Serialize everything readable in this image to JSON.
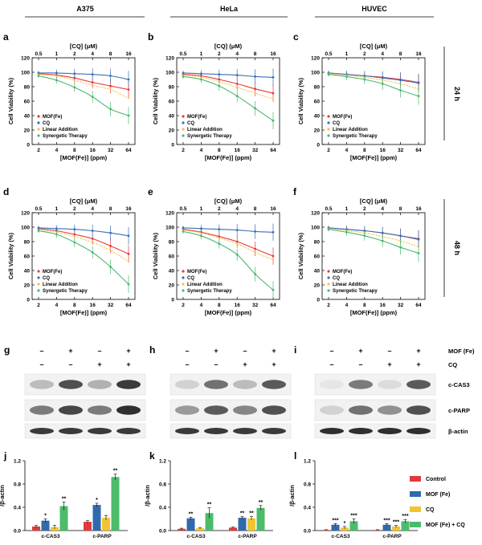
{
  "columns": [
    "A375",
    "HeLa",
    "HUVEC"
  ],
  "time_labels": [
    "24 h",
    "48 h"
  ],
  "colors": {
    "mof": "#e8383d",
    "cq": "#3b6fb6",
    "linear": "#f5c242",
    "synergy": "#4cb870",
    "control_bar": "#e03a3e",
    "mof_bar": "#2f6aac",
    "cq_bar": "#f3c431",
    "combo_bar": "#4cbb6c"
  },
  "legend_labels": [
    "MOF(Fe)",
    "CQ",
    "Linear Addition",
    "Synergetic Therapy"
  ],
  "blot": {
    "row_labels": [
      "MOF (Fe)",
      "CQ"
    ],
    "protein_labels": [
      "c-CAS3",
      "c-PARP",
      "β-actin"
    ],
    "mof_signs": [
      "–",
      "+",
      "–",
      "+"
    ],
    "cq_signs": [
      "–",
      "–",
      "+",
      "+"
    ]
  },
  "chart_data": [
    {
      "panel": "a",
      "type": "line",
      "cell": "A375",
      "time": "24 h",
      "xlabel": "[MOF(Fe)] (ppm)",
      "x2label": "[CQ] (μM)",
      "ylabel": "Cell Viability (%)",
      "x": [
        2,
        4,
        8,
        16,
        32,
        64
      ],
      "x_ticks": [
        "2",
        "4",
        "8",
        "16",
        "32",
        "64"
      ],
      "x2_ticks": [
        "0.5",
        "1",
        "2",
        "4",
        "8",
        "16"
      ],
      "ylim": [
        0,
        120
      ],
      "y_ticks": [
        "0",
        "20",
        "40",
        "60",
        "80",
        "100",
        "120"
      ],
      "series": [
        {
          "name": "MOF(Fe)",
          "values": [
            98,
            96,
            92,
            86,
            81,
            76
          ]
        },
        {
          "name": "CQ",
          "values": [
            99,
            99,
            98,
            97,
            95,
            90
          ]
        },
        {
          "name": "Linear Addition",
          "values": [
            97,
            95,
            89,
            82,
            76,
            64
          ]
        },
        {
          "name": "Synergetic Therapy",
          "values": [
            95,
            89,
            79,
            66,
            49,
            40
          ]
        }
      ]
    },
    {
      "panel": "b",
      "type": "line",
      "cell": "HeLa",
      "time": "24 h",
      "xlabel": "[MOF(Fe)] (ppm)",
      "x2label": "[CQ] (μM)",
      "ylabel": "Cell Viability (%)",
      "x": [
        2,
        4,
        8,
        16,
        32,
        64
      ],
      "x_ticks": [
        "2",
        "4",
        "8",
        "16",
        "32",
        "64"
      ],
      "x2_ticks": [
        "0.5",
        "1",
        "2",
        "4",
        "8",
        "16"
      ],
      "ylim": [
        0,
        120
      ],
      "y_ticks": [
        "0",
        "20",
        "40",
        "60",
        "80",
        "100",
        "120"
      ],
      "series": [
        {
          "name": "MOF(Fe)",
          "values": [
            97,
            95,
            90,
            84,
            77,
            71
          ]
        },
        {
          "name": "CQ",
          "values": [
            99,
            98,
            97,
            96,
            94,
            93
          ]
        },
        {
          "name": "Linear Addition",
          "values": [
            96,
            93,
            87,
            79,
            71,
            63
          ]
        },
        {
          "name": "Synergetic Therapy",
          "values": [
            94,
            90,
            81,
            67,
            50,
            33
          ]
        }
      ]
    },
    {
      "panel": "c",
      "type": "line",
      "cell": "HUVEC",
      "time": "24 h",
      "xlabel": "[MOF(Fe)] (ppm)",
      "x2label": "[CQ] (μM)",
      "ylabel": "Cell Viability (%)",
      "x": [
        2,
        4,
        8,
        16,
        32,
        64
      ],
      "x_ticks": [
        "2",
        "4",
        "8",
        "16",
        "32",
        "64"
      ],
      "x2_ticks": [
        "0.5",
        "1",
        "2",
        "4",
        "8",
        "16"
      ],
      "ylim": [
        0,
        120
      ],
      "y_ticks": [
        "0",
        "20",
        "40",
        "60",
        "80",
        "100",
        "120"
      ],
      "series": [
        {
          "name": "MOF(Fe)",
          "values": [
            99,
            97,
            95,
            93,
            90,
            86
          ]
        },
        {
          "name": "CQ",
          "values": [
            99,
            97,
            95,
            92,
            89,
            85
          ]
        },
        {
          "name": "Linear Addition",
          "values": [
            98,
            96,
            93,
            89,
            84,
            77
          ]
        },
        {
          "name": "Synergetic Therapy",
          "values": [
            97,
            94,
            90,
            84,
            75,
            67
          ]
        }
      ]
    },
    {
      "panel": "d",
      "type": "line",
      "cell": "A375",
      "time": "48 h",
      "xlabel": "[MOF(Fe)] (ppm)",
      "x2label": "[CQ] (μM)",
      "ylabel": "Cell Viability (%)",
      "x": [
        2,
        4,
        8,
        16,
        32,
        64
      ],
      "x_ticks": [
        "2",
        "4",
        "8",
        "16",
        "32",
        "64"
      ],
      "x2_ticks": [
        "0.5",
        "1",
        "2",
        "4",
        "8",
        "16"
      ],
      "ylim": [
        0,
        120
      ],
      "y_ticks": [
        "0",
        "20",
        "40",
        "60",
        "80",
        "100",
        "120"
      ],
      "series": [
        {
          "name": "MOF(Fe)",
          "values": [
            98,
            95,
            90,
            84,
            74,
            63
          ]
        },
        {
          "name": "CQ",
          "values": [
            99,
            98,
            97,
            95,
            92,
            88
          ]
        },
        {
          "name": "Linear Addition",
          "values": [
            96,
            93,
            87,
            79,
            68,
            52
          ]
        },
        {
          "name": "Synergetic Therapy",
          "values": [
            95,
            90,
            79,
            65,
            45,
            21
          ]
        }
      ]
    },
    {
      "panel": "e",
      "type": "line",
      "cell": "HeLa",
      "time": "48 h",
      "xlabel": "[MOF(Fe)] (ppm)",
      "x2label": "[CQ] (μM)",
      "ylabel": "Cell Viability (%)",
      "x": [
        2,
        4,
        8,
        16,
        32,
        64
      ],
      "x_ticks": [
        "2",
        "4",
        "8",
        "16",
        "32",
        "64"
      ],
      "x2_ticks": [
        "0.5",
        "1",
        "2",
        "4",
        "8",
        "16"
      ],
      "ylim": [
        0,
        120
      ],
      "y_ticks": [
        "0",
        "20",
        "40",
        "60",
        "80",
        "100",
        "120"
      ],
      "series": [
        {
          "name": "MOF(Fe)",
          "values": [
            97,
            93,
            87,
            80,
            70,
            60
          ]
        },
        {
          "name": "CQ",
          "values": [
            99,
            98,
            97,
            96,
            94,
            93
          ]
        },
        {
          "name": "Linear Addition",
          "values": [
            96,
            92,
            85,
            77,
            65,
            55
          ]
        },
        {
          "name": "Synergetic Therapy",
          "values": [
            94,
            88,
            77,
            62,
            35,
            13
          ]
        }
      ]
    },
    {
      "panel": "f",
      "type": "line",
      "cell": "HUVEC",
      "time": "48 h",
      "xlabel": "[MOF(Fe)] (ppm)",
      "x2label": "[CQ] (μM)",
      "ylabel": "Cell Viability (%)",
      "x": [
        2,
        4,
        8,
        16,
        32,
        64
      ],
      "x_ticks": [
        "2",
        "4",
        "8",
        "16",
        "32",
        "64"
      ],
      "x2_ticks": [
        "0.5",
        "1",
        "2",
        "4",
        "8",
        "16"
      ],
      "ylim": [
        0,
        120
      ],
      "y_ticks": [
        "0",
        "20",
        "40",
        "60",
        "80",
        "100",
        "120"
      ],
      "series": [
        {
          "name": "MOF(Fe)",
          "values": [
            99,
            97,
            95,
            92,
            88,
            84
          ]
        },
        {
          "name": "CQ",
          "values": [
            99,
            97,
            95,
            92,
            88,
            83
          ]
        },
        {
          "name": "Linear Addition",
          "values": [
            98,
            95,
            92,
            87,
            81,
            73
          ]
        },
        {
          "name": "Synergetic Therapy",
          "values": [
            97,
            93,
            88,
            81,
            72,
            64
          ]
        }
      ]
    },
    {
      "panel": "j",
      "type": "bar",
      "cell": "A375",
      "ylabel": "/β-actin",
      "categories": [
        "c-CAS3",
        "c-PARP"
      ],
      "ylim": [
        0,
        1.2
      ],
      "y_ticks": [
        "0.0",
        "0.4",
        "0.8",
        "1.2"
      ],
      "series": [
        {
          "name": "Control",
          "values": [
            0.07,
            0.15
          ],
          "errors": [
            0.02,
            0.02
          ],
          "sig": [
            "",
            ""
          ]
        },
        {
          "name": "MOF (Fe)",
          "values": [
            0.17,
            0.44
          ],
          "errors": [
            0.03,
            0.03
          ],
          "sig": [
            "*",
            "*"
          ]
        },
        {
          "name": "CQ",
          "values": [
            0.06,
            0.22
          ],
          "errors": [
            0.03,
            0.04
          ],
          "sig": [
            "",
            ""
          ]
        },
        {
          "name": "MOF (Fe) + CQ",
          "values": [
            0.42,
            0.92
          ],
          "errors": [
            0.07,
            0.05
          ],
          "sig": [
            "**",
            "**"
          ]
        }
      ]
    },
    {
      "panel": "k",
      "type": "bar",
      "cell": "HeLa",
      "ylabel": "/β-actin",
      "categories": [
        "c-CAS3",
        "c-PARP"
      ],
      "ylim": [
        0,
        1.2
      ],
      "y_ticks": [
        "0.0",
        "0.4",
        "0.8",
        "1.2"
      ],
      "series": [
        {
          "name": "Control",
          "values": [
            0.03,
            0.05
          ],
          "errors": [
            0.01,
            0.01
          ],
          "sig": [
            "",
            ""
          ]
        },
        {
          "name": "MOF (Fe)",
          "values": [
            0.21,
            0.22
          ],
          "errors": [
            0.02,
            0.02
          ],
          "sig": [
            "**",
            "**"
          ]
        },
        {
          "name": "CQ",
          "values": [
            0.04,
            0.21
          ],
          "errors": [
            0.01,
            0.03
          ],
          "sig": [
            "",
            "**"
          ]
        },
        {
          "name": "MOF (Fe) + CQ",
          "values": [
            0.3,
            0.39
          ],
          "errors": [
            0.09,
            0.04
          ],
          "sig": [
            "**",
            "**"
          ]
        }
      ]
    },
    {
      "panel": "l",
      "type": "bar",
      "cell": "HUVEC",
      "ylabel": "/β-actin",
      "categories": [
        "c-CAS3",
        "c-PARP"
      ],
      "ylim": [
        0,
        1.2
      ],
      "y_ticks": [
        "0.0",
        "0.4",
        "0.8",
        "1.2"
      ],
      "series": [
        {
          "name": "Control",
          "values": [
            0.01,
            0.01
          ],
          "errors": [
            0.005,
            0.005
          ],
          "sig": [
            "",
            ""
          ]
        },
        {
          "name": "MOF (Fe)",
          "values": [
            0.1,
            0.1
          ],
          "errors": [
            0.02,
            0.02
          ],
          "sig": [
            "***",
            "***"
          ]
        },
        {
          "name": "CQ",
          "values": [
            0.05,
            0.07
          ],
          "errors": [
            0.02,
            0.02
          ],
          "sig": [
            "*",
            "***"
          ]
        },
        {
          "name": "MOF (Fe) + CQ",
          "values": [
            0.16,
            0.16
          ],
          "errors": [
            0.04,
            0.03
          ],
          "sig": [
            "***",
            "***"
          ]
        }
      ]
    }
  ]
}
